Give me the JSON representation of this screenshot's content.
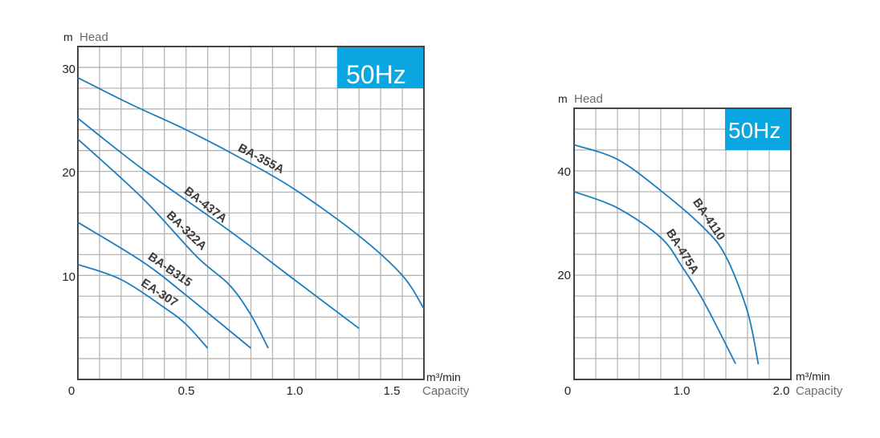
{
  "chart_data": [
    {
      "type": "line",
      "badge": "50Hz",
      "ylabel_unit": "m",
      "ylabel": "Head",
      "xlabel_unit": "m³/min",
      "xlabel": "Capacity",
      "xlim": [
        0,
        1.6
      ],
      "ylim": [
        0,
        32
      ],
      "grid": true,
      "x_ticks": [
        "0",
        "0.5",
        "1.0",
        "1.5"
      ],
      "y_ticks": [
        "30",
        "20",
        "10"
      ],
      "series": [
        {
          "name": "BA-355A",
          "points": [
            [
              0,
              29.0
            ],
            [
              0.25,
              26.4
            ],
            [
              0.5,
              24.0
            ],
            [
              0.75,
              21.3
            ],
            [
              1.0,
              18.3
            ],
            [
              1.3,
              13.8
            ],
            [
              1.5,
              10.0
            ],
            [
              1.6,
              6.8
            ]
          ]
        },
        {
          "name": "BA-437A",
          "points": [
            [
              0,
              25.1
            ],
            [
              0.3,
              20.2
            ],
            [
              0.7,
              14.3
            ],
            [
              1.0,
              9.6
            ],
            [
              1.3,
              4.9
            ]
          ]
        },
        {
          "name": "BA-322A",
          "points": [
            [
              0,
              23.1
            ],
            [
              0.3,
              17.4
            ],
            [
              0.55,
              11.8
            ],
            [
              0.7,
              9.1
            ],
            [
              0.8,
              6.2
            ],
            [
              0.88,
              3.0
            ]
          ]
        },
        {
          "name": "BA-B315",
          "points": [
            [
              0,
              15.1
            ],
            [
              0.3,
              11.3
            ],
            [
              0.5,
              8.1
            ],
            [
              0.8,
              3.0
            ]
          ]
        },
        {
          "name": "EA-307",
          "points": [
            [
              0,
              11.05
            ],
            [
              0.2,
              9.6
            ],
            [
              0.4,
              6.9
            ],
            [
              0.5,
              5.3
            ],
            [
              0.6,
              3.0
            ]
          ]
        }
      ]
    },
    {
      "type": "line",
      "badge": "50Hz",
      "ylabel_unit": "m",
      "ylabel": "Head",
      "xlabel_unit": "m³/min",
      "xlabel": "Capacity",
      "xlim": [
        0,
        2.0
      ],
      "ylim": [
        0,
        52
      ],
      "grid": true,
      "x_ticks": [
        "0",
        "1.0",
        "2.0"
      ],
      "y_ticks": [
        "40",
        "20"
      ],
      "series": [
        {
          "name": "BA-4110",
          "points": [
            [
              0,
              45.0
            ],
            [
              0.4,
              42.2
            ],
            [
              0.8,
              36.2
            ],
            [
              1.2,
              29.0
            ],
            [
              1.4,
              23.6
            ],
            [
              1.6,
              13.0
            ],
            [
              1.7,
              2.9
            ]
          ]
        },
        {
          "name": "BA-475A",
          "points": [
            [
              0,
              36.0
            ],
            [
              0.4,
              32.9
            ],
            [
              0.8,
              27.2
            ],
            [
              1.0,
              21.5
            ],
            [
              1.2,
              14.8
            ],
            [
              1.49,
              3.0
            ]
          ]
        }
      ]
    }
  ],
  "colors": {
    "curve": "#1b7cc0",
    "badge": "#0aa6e2",
    "grid": "#b5b5b5",
    "frame": "#444444"
  }
}
